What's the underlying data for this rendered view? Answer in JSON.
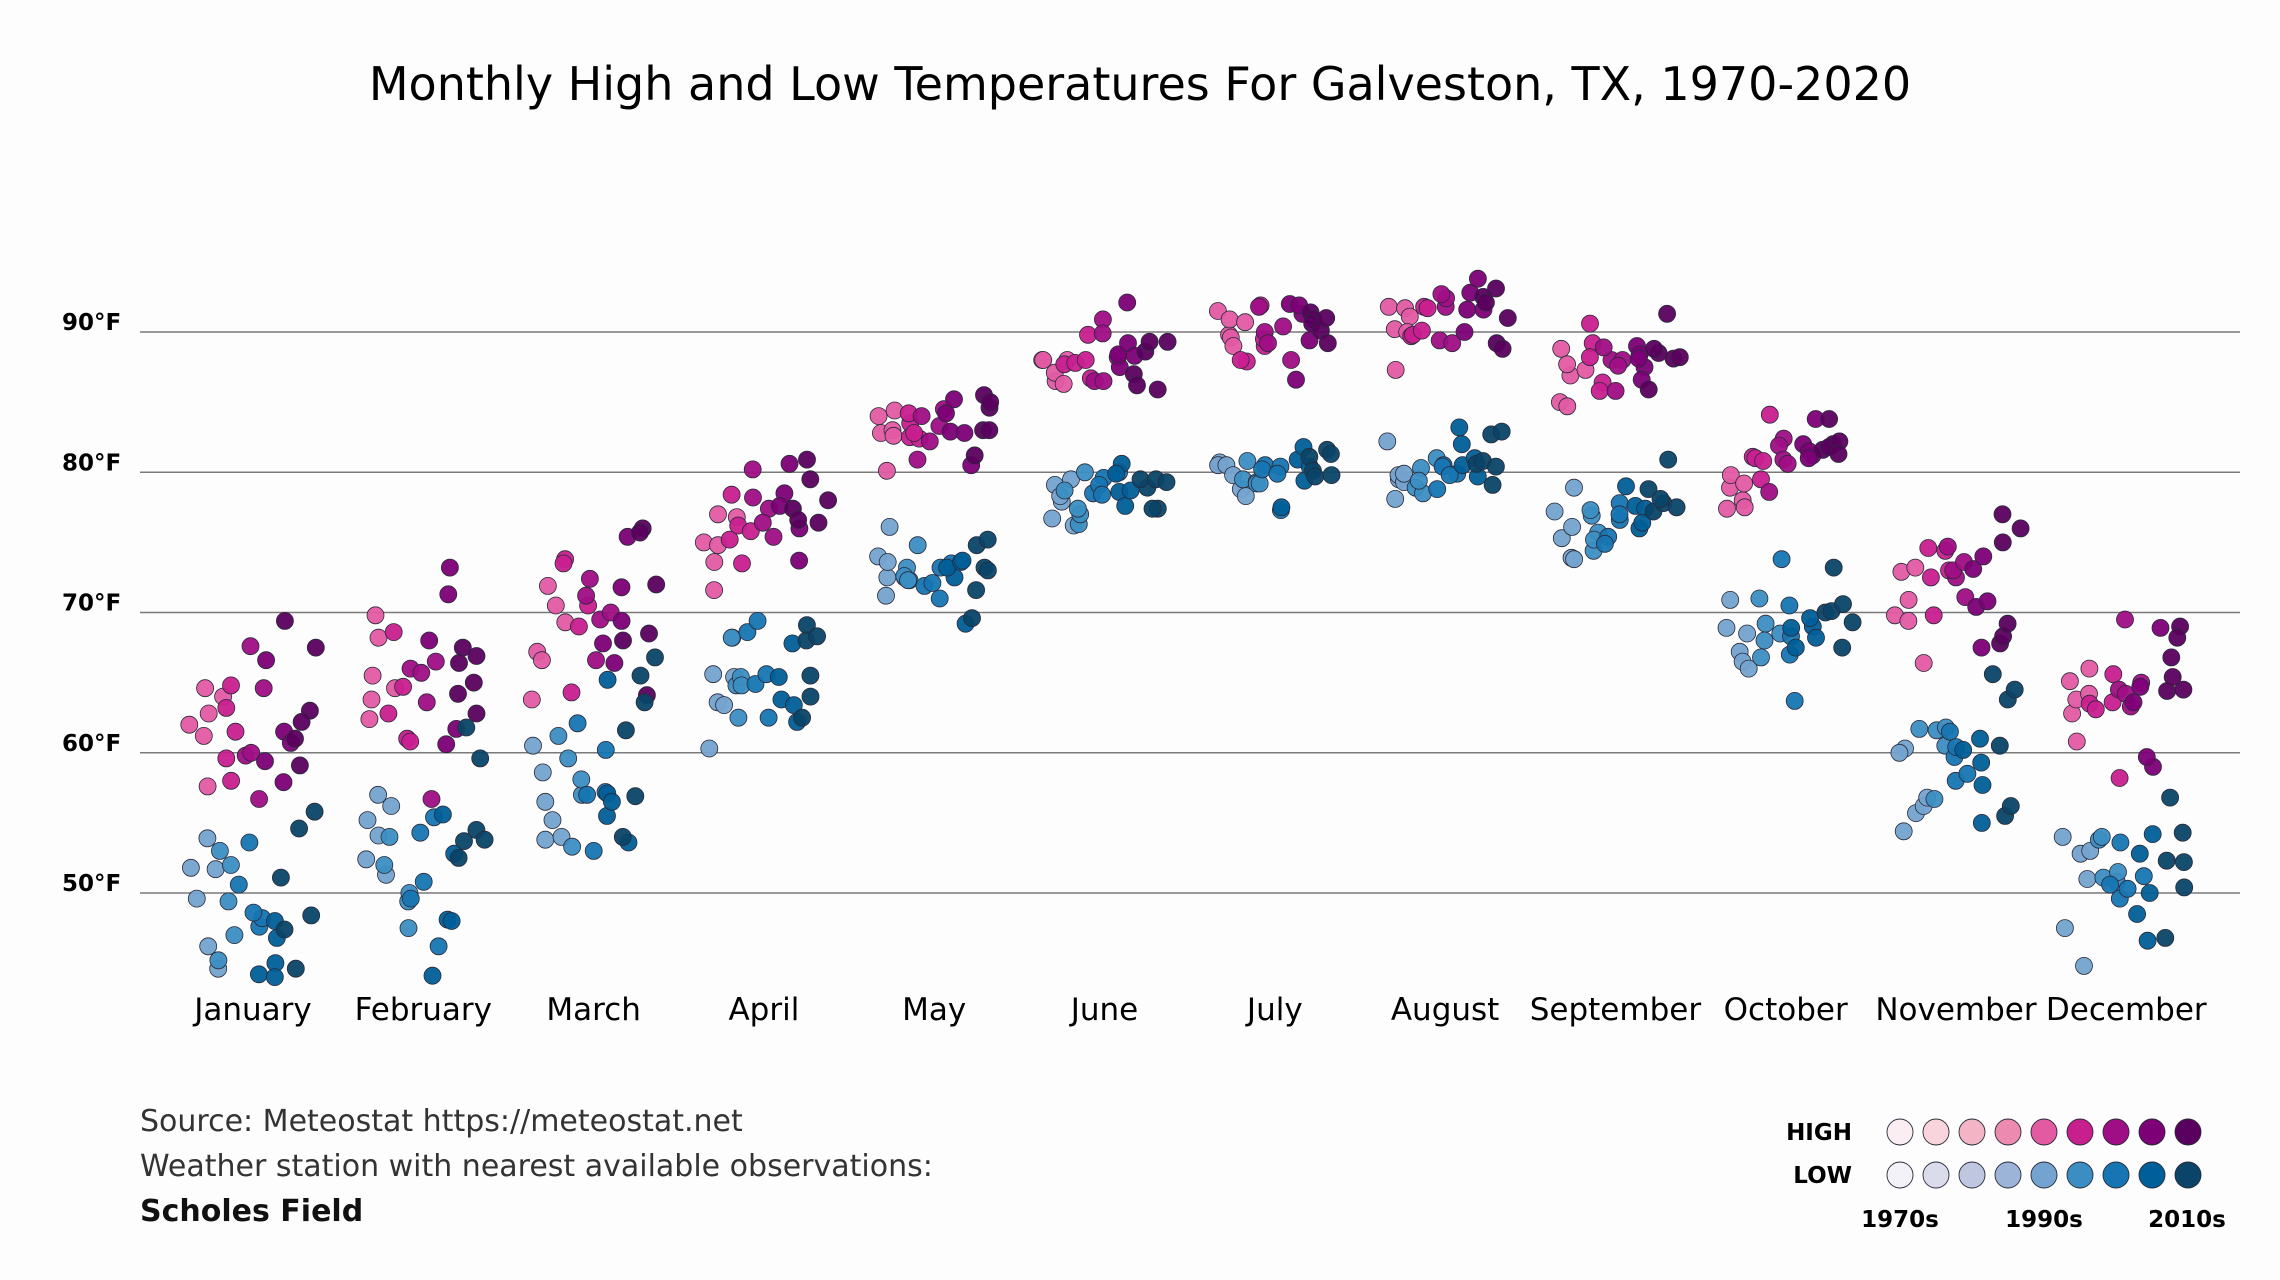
{
  "source_note": "Source: Meteostat https://meteostat.net",
  "station_note": "Weather station with nearest available observations:",
  "station_name": "Scholes Field",
  "colors": {
    "high": [
      "#fbeef2",
      "#f8d5dd",
      "#f3b5c6",
      "#ec8ab0",
      "#e35aa3",
      "#c81f8f",
      "#a00e85",
      "#7d0077",
      "#5a005e"
    ],
    "low": [
      "#f2f2f8",
      "#dadbeb",
      "#bfc6e0",
      "#9cb4d8",
      "#74a3cf",
      "#3b8ec2",
      "#1675b2",
      "#005f98",
      "#0a4468"
    ],
    "grid": "#7a7a7a"
  },
  "chart_data": {
    "type": "scatter",
    "title": "Monthly High and Low Temperatures For Galveston, TX, 1970-2020",
    "xlabel": "",
    "ylabel": "",
    "ylim": [
      43,
      95
    ],
    "y_ticks": [
      {
        "value": 50,
        "label": "50°F"
      },
      {
        "value": 60,
        "label": "60°F"
      },
      {
        "value": 70,
        "label": "70°F"
      },
      {
        "value": 80,
        "label": "80°F"
      },
      {
        "value": 90,
        "label": "90°F"
      }
    ],
    "categories": [
      "January",
      "February",
      "March",
      "April",
      "May",
      "June",
      "July",
      "August",
      "September",
      "October",
      "November",
      "December"
    ],
    "series": [
      {
        "name": "HIGH",
        "values": [
          [
            62.0,
            61.2,
            64.6,
            57.6,
            62.8,
            64.0,
            59.6,
            63.2,
            58.0,
            61.5,
            64.8,
            59.8,
            67.6,
            60.0,
            64.6,
            56.7,
            59.4,
            66.6,
            61.5,
            57.9,
            60.7,
            61.0,
            69.4,
            59.1,
            63.0,
            62.2,
            67.5
          ],
          [
            65.5,
            62.4,
            63.8,
            68.2,
            69.8,
            64.6,
            62.8,
            68.6,
            64.7,
            61.0,
            60.8,
            66.0,
            63.6,
            56.7,
            65.7,
            66.5,
            68.0,
            73.2,
            60.6,
            71.3,
            61.7,
            64.2,
            67.5,
            66.4,
            62.8,
            65.0,
            66.9
          ],
          [
            67.2,
            63.8,
            66.6,
            70.5,
            71.9,
            69.3,
            73.8,
            64.3,
            73.5,
            69.0,
            70.5,
            71.2,
            72.4,
            66.6,
            69.5,
            70.0,
            66.4,
            67.8,
            69.4,
            75.4,
            71.8,
            68.0,
            76.0,
            75.7,
            64.1,
            68.5,
            72.0
          ],
          [
            75.0,
            74.8,
            71.6,
            73.6,
            77.0,
            76.8,
            75.2,
            78.4,
            73.5,
            76.2,
            75.8,
            80.2,
            78.2,
            77.4,
            76.4,
            75.4,
            78.5,
            80.6,
            77.6,
            73.7,
            76.0,
            77.4,
            76.6,
            80.9,
            76.4,
            79.5,
            78.0
          ],
          [
            84.0,
            82.8,
            83.0,
            82.6,
            80.1,
            84.4,
            83.5,
            82.5,
            82.4,
            84.2,
            82.8,
            80.9,
            84.0,
            82.2,
            83.3,
            84.5,
            84.2,
            82.9,
            82.8,
            85.2,
            80.5,
            81.2,
            83.0,
            85.5,
            84.6,
            83.0,
            85.0
          ],
          [
            88.0,
            88.0,
            86.5,
            87.1,
            86.3,
            88.0,
            87.7,
            87.8,
            86.7,
            89.8,
            88.0,
            86.5,
            86.5,
            90.9,
            89.9,
            88.2,
            87.5,
            88.4,
            92.1,
            89.2,
            88.3,
            87.0,
            86.2,
            88.6,
            89.3,
            85.9,
            89.3
          ],
          [
            91.5,
            89.8,
            90.9,
            89.6,
            89.0,
            90.7,
            87.9,
            88.0,
            91.9,
            89.0,
            89.5,
            91.8,
            90.0,
            89.2,
            90.4,
            88.0,
            86.6,
            92.0,
            91.3,
            89.4,
            91.9,
            91.4,
            90.9,
            90.6,
            90.1,
            91.0,
            89.2
          ],
          [
            91.8,
            90.2,
            87.3,
            91.7,
            91.1,
            90.0,
            89.7,
            89.8,
            90.1,
            91.8,
            91.7,
            89.4,
            91.8,
            92.4,
            92.7,
            89.2,
            91.6,
            90.0,
            92.8,
            93.8,
            91.6,
            92.5,
            92.1,
            89.2,
            88.8,
            93.1,
            91.0
          ],
          [
            88.8,
            85.0,
            86.9,
            87.7,
            84.7,
            87.3,
            89.2,
            88.2,
            90.6,
            86.4,
            85.8,
            88.0,
            88.9,
            88.0,
            85.8,
            87.6,
            89.0,
            88.4,
            87.5,
            86.6,
            88.1,
            85.9,
            88.5,
            88.8,
            91.3,
            88.1,
            88.2
          ],
          [
            78.9,
            77.4,
            79.8,
            78.0,
            77.5,
            79.2,
            81.1,
            81.0,
            79.5,
            80.8,
            84.1,
            78.6,
            82.4,
            81.9,
            80.9,
            80.6,
            82.0,
            81.2,
            83.8,
            81.5,
            81.0,
            81.6,
            82.0,
            81.8,
            83.8,
            82.2,
            81.3
          ],
          [
            69.8,
            70.9,
            72.9,
            69.4,
            66.4,
            73.2,
            74.6,
            72.5,
            69.8,
            74.4,
            73.0,
            74.7,
            72.5,
            73.0,
            71.1,
            73.6,
            70.4,
            73.1,
            74.0,
            70.8,
            67.5,
            67.8,
            75.0,
            77.0,
            68.3,
            69.2,
            76.0
          ],
          [
            65.1,
            60.8,
            62.8,
            63.8,
            66.0,
            64.2,
            63.5,
            63.1,
            63.6,
            65.6,
            58.2,
            64.5,
            64.2,
            63.3,
            69.5,
            65.0,
            63.6,
            59.0,
            64.7,
            59.7,
            68.9,
            64.4,
            65.4,
            66.8,
            69.0,
            64.5,
            68.2
          ]
        ]
      },
      {
        "name": "LOW",
        "values": [
          [
            51.8,
            46.2,
            49.6,
            53.9,
            44.6,
            51.7,
            45.2,
            53.0,
            49.4,
            47.0,
            52.0,
            50.6,
            53.6,
            47.6,
            48.2,
            48.6,
            44.2,
            45.0,
            48.0,
            44.0,
            46.8,
            51.1,
            47.4,
            54.6,
            44.6,
            48.4,
            55.8
          ],
          [
            52.4,
            57.0,
            55.2,
            54.1,
            56.2,
            51.3,
            52.0,
            54.0,
            49.4,
            47.5,
            50.0,
            49.6,
            54.3,
            50.8,
            55.4,
            46.2,
            44.1,
            55.6,
            52.8,
            48.1,
            48.0,
            61.8,
            52.5,
            53.7,
            59.6,
            54.5,
            53.8
          ],
          [
            58.6,
            60.5,
            55.2,
            53.8,
            56.5,
            54.0,
            59.6,
            61.2,
            53.3,
            57.0,
            58.1,
            62.1,
            57.0,
            53.0,
            60.2,
            57.2,
            55.5,
            65.2,
            57.1,
            56.5,
            53.6,
            54.0,
            61.6,
            63.6,
            56.9,
            65.5,
            66.8
          ],
          [
            65.6,
            63.6,
            60.3,
            63.4,
            68.2,
            65.4,
            64.8,
            68.2,
            65.4,
            62.5,
            64.8,
            68.6,
            64.9,
            69.4,
            65.6,
            62.5,
            65.4,
            63.8,
            63.4,
            67.8,
            62.2,
            62.5,
            69.1,
            64.0,
            68.0,
            65.5,
            68.3
          ],
          [
            74.0,
            71.2,
            72.5,
            73.6,
            76.1,
            72.5,
            72.3,
            73.2,
            72.6,
            72.3,
            74.8,
            71.9,
            72.1,
            71.0,
            73.2,
            73.5,
            72.5,
            73.2,
            73.6,
            69.2,
            73.7,
            69.6,
            71.6,
            73.2,
            74.8,
            75.2,
            73.0
          ],
          [
            76.7,
            79.1,
            77.9,
            78.3,
            79.5,
            76.2,
            78.7,
            76.3,
            77.0,
            77.4,
            80.0,
            78.5,
            79.6,
            79.1,
            78.4,
            80.0,
            80.6,
            79.9,
            78.6,
            77.6,
            78.7,
            78.9,
            79.5,
            77.4,
            79.5,
            77.4,
            79.3
          ],
          [
            80.7,
            80.5,
            80.5,
            79.8,
            78.8,
            78.3,
            79.5,
            80.8,
            79.3,
            79.2,
            79.2,
            80.5,
            80.2,
            80.4,
            77.3,
            79.9,
            77.5,
            80.9,
            81.8,
            80.4,
            79.4,
            81.1,
            80.1,
            79.7,
            81.6,
            79.8,
            81.3
          ],
          [
            82.2,
            78.1,
            79.5,
            79.8,
            79.3,
            79.9,
            80.3,
            78.9,
            78.5,
            79.4,
            81.0,
            78.8,
            80.5,
            80.4,
            79.9,
            79.8,
            82.0,
            83.2,
            80.5,
            81.0,
            79.7,
            80.6,
            79.1,
            80.8,
            80.4,
            82.7,
            82.9
          ],
          [
            77.2,
            75.3,
            76.1,
            73.9,
            78.9,
            73.8,
            76.9,
            74.4,
            77.3,
            75.7,
            75.2,
            75.4,
            74.9,
            77.8,
            76.6,
            77.0,
            79.0,
            77.6,
            76.0,
            77.4,
            76.4,
            77.2,
            78.8,
            77.8,
            80.9,
            78.1,
            77.5
          ],
          [
            68.9,
            67.2,
            70.9,
            66.5,
            66.0,
            68.5,
            66.8,
            71.0,
            69.2,
            68.0,
            68.5,
            73.8,
            67.0,
            68.3,
            63.7,
            70.5,
            68.9,
            67.5,
            69.0,
            69.6,
            68.2,
            70.0,
            73.2,
            70.1,
            67.5,
            70.6,
            69.3
          ],
          [
            60.3,
            60.0,
            54.4,
            55.7,
            56.2,
            56.8,
            61.7,
            56.7,
            61.6,
            60.5,
            61.8,
            61.5,
            59.7,
            58.0,
            60.4,
            58.5,
            60.2,
            57.7,
            55.0,
            59.3,
            61.0,
            60.5,
            65.6,
            55.5,
            63.8,
            56.2,
            64.5
          ],
          [
            54.0,
            47.5,
            52.8,
            53.0,
            44.8,
            51.0,
            53.8,
            51.1,
            54.0,
            50.8,
            51.5,
            50.6,
            49.6,
            53.6,
            50.3,
            51.2,
            48.5,
            52.8,
            46.6,
            50.0,
            54.2,
            46.8,
            56.8,
            52.3,
            50.4,
            54.3,
            52.2
          ]
        ]
      }
    ],
    "legend": {
      "position": "bottom-right",
      "rows": [
        "HIGH",
        "LOW"
      ],
      "decade_labels": [
        "1970s",
        "1990s",
        "2010s"
      ]
    }
  }
}
